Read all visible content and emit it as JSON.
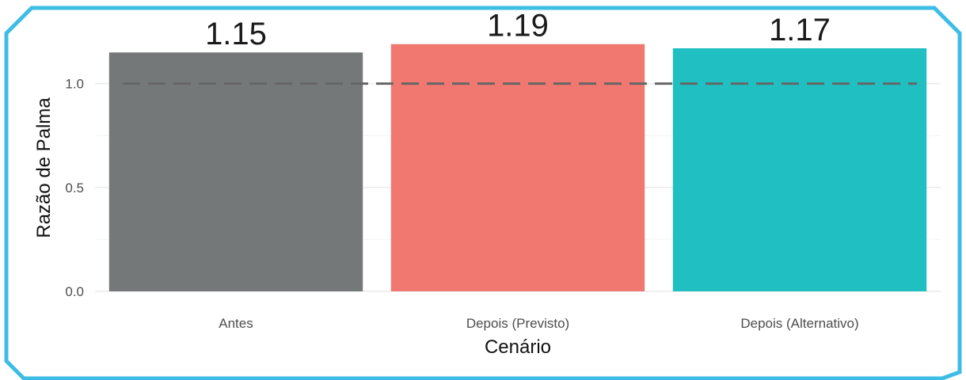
{
  "colors": {
    "frame": "#3dbde6",
    "grid": "#ebebeb",
    "reference_line": "#666666"
  },
  "chart_data": {
    "type": "bar",
    "categories": [
      "Antes",
      "Depois (Previsto)",
      "Depois (Alternativo)"
    ],
    "values": [
      1.15,
      1.19,
      1.17
    ],
    "data_labels": [
      "1.15",
      "1.19",
      "1.17"
    ],
    "bar_colors": [
      "#757878",
      "#f07870",
      "#1fbfc2"
    ],
    "xlabel": "Cenário",
    "ylabel": "Razão de Palma",
    "ylim": [
      0,
      1.25
    ],
    "yticks": [
      0.0,
      0.5,
      1.0
    ],
    "ytick_labels": [
      "0.0",
      "0.5",
      "1.0"
    ],
    "reference_line": {
      "y": 1.0,
      "style": "dashed"
    },
    "grid": true,
    "legend": "none"
  }
}
